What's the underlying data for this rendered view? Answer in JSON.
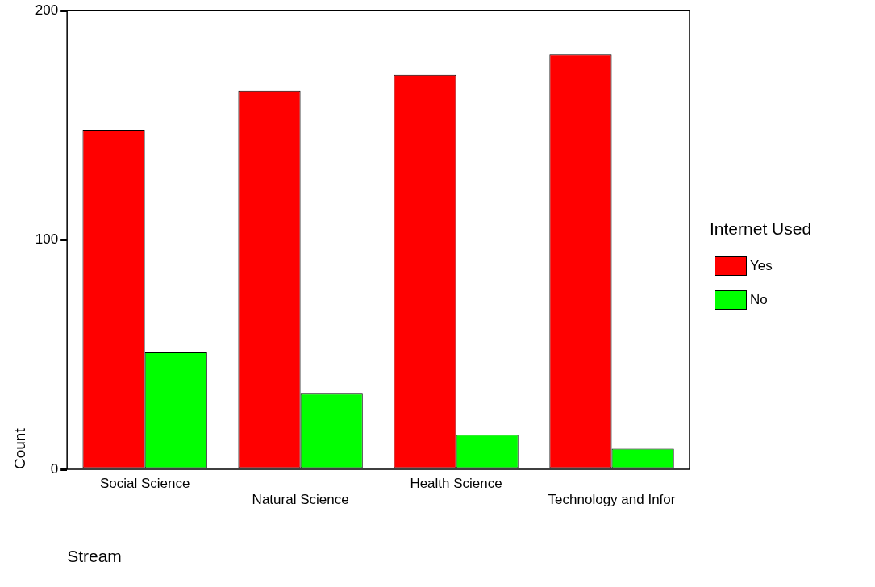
{
  "chart_data": {
    "type": "bar",
    "xlabel": "Stream",
    "ylabel": "Count",
    "legend_title": "Internet Used",
    "categories": [
      "Social Science",
      "Natural Science",
      "Health Science",
      "Technology and Infor"
    ],
    "series": [
      {
        "name": "Yes",
        "color": "#ff0000",
        "values": [
          148,
          165,
          172,
          181
        ]
      },
      {
        "name": "No",
        "color": "#00ff00",
        "values": [
          51,
          33,
          15,
          9
        ]
      }
    ],
    "ylim": [
      0,
      200
    ],
    "yticks": [
      0,
      100,
      200
    ],
    "grid": false,
    "legend": "right"
  }
}
